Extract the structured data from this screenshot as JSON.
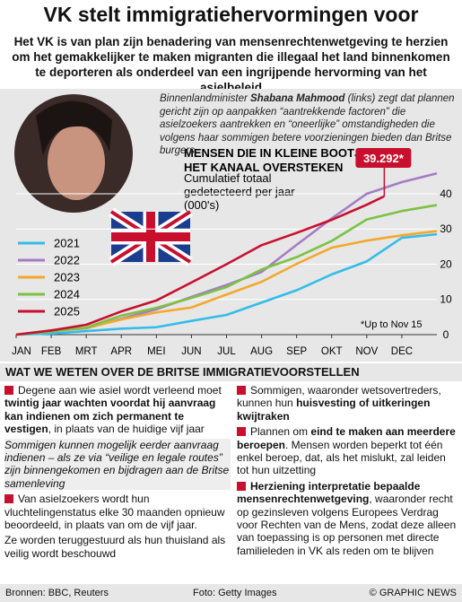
{
  "title": "VK stelt immigratiehervormingen voor",
  "intro": "Het VK is van plan zijn benadering van mensenrechtenwetgeving te herzien om het gemakkelijker te maken migranten die illegaal het land binnenkomen te deporteren als onderdeel van een ingrijpende hervorming van het asielbeleid",
  "photo_caption": [
    {
      "text": "Binnenlandminister "
    },
    {
      "text": "Shabana Mahmood",
      "bold": true
    },
    {
      "text": " (links) zegt dat plannen gericht zijn op aanpakken “aantrekkende factoren” die asielzoekers aantrekken en “oneerlijke” omstandigheden die volgens haar sommigen betere voorzieningen bieden dan Britse burgers"
    }
  ],
  "chart_data": {
    "type": "line",
    "title": "MENSEN DIE IN KLEINE BOOTJES HET KANAAL OVERSTEKEN",
    "subtitle": "Cumulatief totaal gedetecteerd per jaar (000's)",
    "annotation": "39.292*",
    "footnote": "*Up to Nov 15",
    "xlim": [
      0,
      12
    ],
    "xticks": [
      {
        "value": 0,
        "label": "JAN"
      },
      {
        "value": 1,
        "label": "FEB"
      },
      {
        "value": 2,
        "label": "MRT"
      },
      {
        "value": 3,
        "label": "APR"
      },
      {
        "value": 4,
        "label": "MEI"
      },
      {
        "value": 5,
        "label": "JUN"
      },
      {
        "value": 6,
        "label": "JUL"
      },
      {
        "value": 7,
        "label": "AUG"
      },
      {
        "value": 8,
        "label": "SEP"
      },
      {
        "value": 9,
        "label": "OKT"
      },
      {
        "value": 10,
        "label": "NOV"
      },
      {
        "value": 11,
        "label": "DEC"
      }
    ],
    "ylim": [
      0,
      47
    ],
    "yticks": [
      0,
      10,
      20,
      30,
      40
    ],
    "series": [
      {
        "name": "2021",
        "color": "#33bde8",
        "x": [
          0,
          1,
          2,
          3,
          4,
          5,
          6,
          7,
          8,
          9,
          10,
          11,
          12
        ],
        "values": [
          0,
          0.3,
          1.0,
          1.7,
          2.1,
          3.9,
          5.6,
          9.1,
          12.6,
          17.1,
          20.8,
          27.5,
          28.5
        ]
      },
      {
        "name": "2022",
        "color": "#a57cc4",
        "x": [
          0,
          1,
          2,
          3,
          4,
          5,
          6,
          7,
          8,
          9,
          10,
          11,
          12
        ],
        "values": [
          0,
          1.1,
          1.8,
          4.5,
          7.2,
          10.7,
          14.1,
          17.8,
          25.5,
          33.0,
          40.0,
          43.3,
          45.8
        ]
      },
      {
        "name": "2023",
        "color": "#f2a92b",
        "x": [
          0,
          1,
          2,
          3,
          4,
          5,
          6,
          7,
          8,
          9,
          10,
          11,
          12
        ],
        "values": [
          0,
          1.2,
          1.9,
          4.3,
          6.3,
          7.7,
          11.4,
          15.0,
          20.1,
          24.7,
          26.7,
          28.2,
          29.4
        ]
      },
      {
        "name": "2024",
        "color": "#7cc242",
        "x": [
          0,
          1,
          2,
          3,
          4,
          5,
          6,
          7,
          8,
          9,
          10,
          11,
          12
        ],
        "values": [
          0,
          0.9,
          2.0,
          5.4,
          7.6,
          10.4,
          13.5,
          18.5,
          22.0,
          26.6,
          32.7,
          35.1,
          36.8
        ]
      },
      {
        "name": "2025",
        "color": "#c8102e",
        "x": [
          0,
          1,
          2,
          3,
          4,
          5,
          6,
          7,
          8,
          9,
          10,
          10.5
        ],
        "values": [
          0,
          1.2,
          2.8,
          6.6,
          9.7,
          14.8,
          20.0,
          25.4,
          28.9,
          32.6,
          36.9,
          39.292
        ]
      }
    ]
  },
  "section": {
    "heading": "WAT WE WETEN OVER DE BRITSE IMMIGRATIEVOORSTELLEN",
    "columns": [
      [
        {
          "style": "bullet",
          "segments": [
            {
              "text": "Degene aan wie asiel wordt verleend moet "
            },
            {
              "text": "twintig jaar wachten voordat hij aanvraag kan indienen om zich permanent te vestigen",
              "bold": true
            },
            {
              "text": ", in plaats van de huidige vijf jaar"
            }
          ]
        },
        {
          "style": "italic",
          "segments": [
            {
              "text": "Sommigen kunnen mogelijk eerder aanvraag indienen – als ze via “veilige en legale routes” zijn binnengekomen en bijdragen aan de Britse samenleving"
            }
          ]
        },
        {
          "style": "bullet",
          "segments": [
            {
              "text": "Van asielzoekers wordt hun vluchtelingenstatus elke 30 maanden opnieuw beoordeeld, in plaats van om de vijf jaar."
            }
          ]
        },
        {
          "style": "plain",
          "segments": [
            {
              "text": "Ze worden teruggestuurd als hun thuisland als veilig wordt beschouwd"
            }
          ]
        }
      ],
      [
        {
          "style": "bullet",
          "segments": [
            {
              "text": "Sommigen, waaronder wetsovertreders, kunnen hun "
            },
            {
              "text": "huisvesting of uitkeringen kwijtraken",
              "bold": true
            }
          ]
        },
        {
          "style": "bullet",
          "segments": [
            {
              "text": "Plannen om "
            },
            {
              "text": "eind te maken aan meerdere beroepen",
              "bold": true
            },
            {
              "text": ". Mensen worden beperkt tot één enkel beroep, dat, als het mislukt, zal leiden tot hun uitzetting"
            }
          ]
        },
        {
          "style": "bullet",
          "segments": [
            {
              "text": "Herziening interpretatie bepaalde mensenrechtenwetgeving",
              "bold": true
            },
            {
              "text": ", waaronder recht op gezinsleven volgens Europees Verdrag voor Rechten van de Mens, zodat deze alleen van toepassing is op personen met directe familieleden in VK als reden om te blijven"
            }
          ]
        }
      ]
    ]
  },
  "footer": {
    "sources": "Bronnen: BBC, Reuters",
    "photo": "Foto: Getty Images",
    "credit": "© GRAPHIC NEWS"
  }
}
